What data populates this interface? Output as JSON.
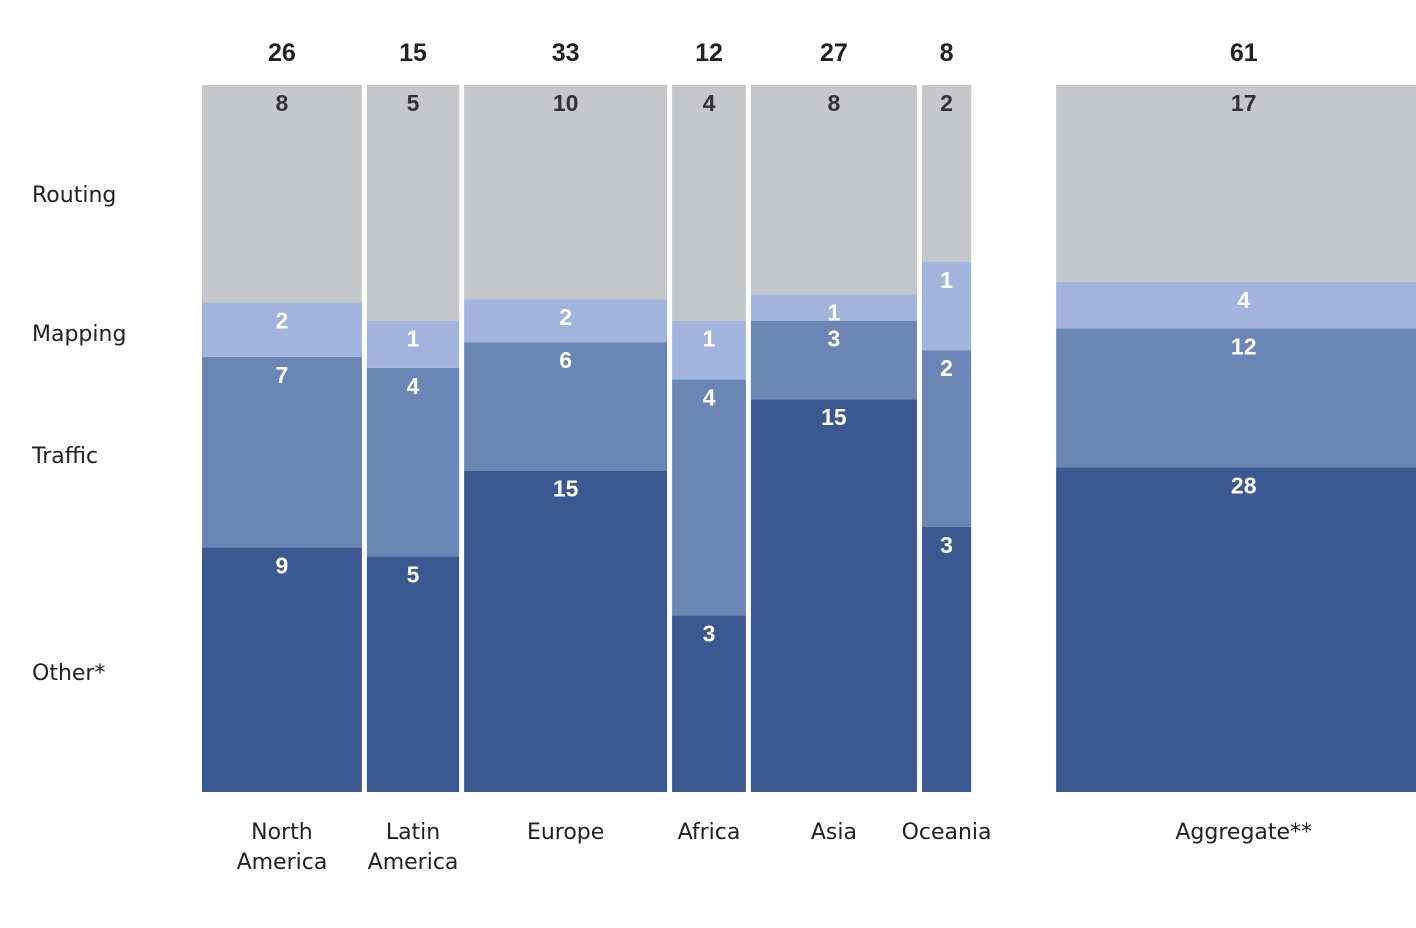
{
  "chart_data": {
    "type": "bar",
    "stacked": true,
    "variable_width": true,
    "series_order_bottom_to_top": [
      "Other*",
      "Traffic",
      "Mapping",
      "Routing"
    ],
    "colors": {
      "Routing": "#c6c7ca",
      "Mapping": "#a0b4de",
      "Traffic": "#6b86b4",
      "Other*": "#3b5891",
      "label_on_light": "#333333",
      "label_on_dark": "#ffffff"
    },
    "categories": [
      {
        "name": [
          "North",
          "America"
        ],
        "total": "26",
        "segments": {
          "Routing": 8,
          "Mapping": 2,
          "Traffic": 7,
          "Other*": 9
        }
      },
      {
        "name": [
          "Latin",
          "America"
        ],
        "total": "15",
        "segments": {
          "Routing": 5,
          "Mapping": 1,
          "Traffic": 4,
          "Other*": 5
        }
      },
      {
        "name": [
          "Europe"
        ],
        "total": "33",
        "segments": {
          "Routing": 10,
          "Mapping": 2,
          "Traffic": 6,
          "Other*": 15
        }
      },
      {
        "name": [
          "Africa"
        ],
        "total": "12",
        "segments": {
          "Routing": 4,
          "Mapping": 1,
          "Traffic": 4,
          "Other*": 3
        }
      },
      {
        "name": [
          "Asia"
        ],
        "total": "27",
        "segments": {
          "Routing": 8,
          "Mapping": 1,
          "Traffic": 3,
          "Other*": 15
        }
      },
      {
        "name": [
          "Oceania"
        ],
        "total": "8",
        "segments": {
          "Routing": 2,
          "Mapping": 1,
          "Traffic": 2,
          "Other*": 3
        }
      },
      {
        "name": [
          "Aggregate**"
        ],
        "total": "61",
        "separate": true,
        "segments": {
          "Routing": 17,
          "Mapping": 4,
          "Traffic": 12,
          "Other*": 28
        }
      }
    ],
    "row_labels": [
      "Routing",
      "Mapping",
      "Traffic",
      "Other*"
    ]
  }
}
